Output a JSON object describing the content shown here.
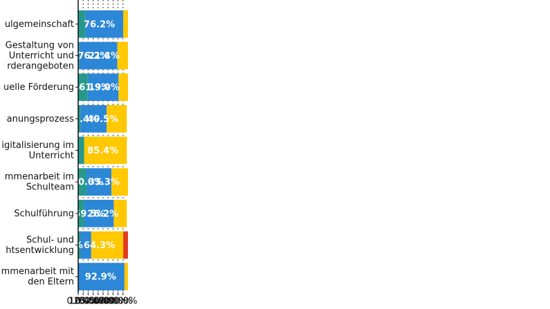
{
  "chart_data": {
    "type": "stacked-bar-horizontal",
    "categories": [
      "ulgemeinschaft",
      "Gestaltung von\nUnterricht und\nrderangeboten",
      "uelle Förderung",
      "anungsprozess",
      "igitalisierung im\nUnterricht",
      "mmenarbeit im\nSchulteam",
      "Schulführung",
      "Schul- und\nhtsentwicklung",
      "mmenarbeit mit\nden Eltern"
    ],
    "series": [
      {
        "color": "#27998b",
        "values": [
          14.3,
          2.4,
          19.1,
          4.7,
          12.2,
          16.7,
          11.9,
          4.8,
          0
        ],
        "value_labels": [
          "14.3%",
          null,
          "19.1%",
          null,
          "12.2%",
          "16.7%",
          "11.9%",
          null,
          null
        ]
      },
      {
        "color": "#2c87d7",
        "values": [
          76.2,
          76.2,
          61.9,
          52.4,
          0,
          50.0,
          59.5,
          21.4,
          92.9
        ],
        "value_labels": [
          "76.2%",
          "76.2%",
          "61.9%",
          "52.4%",
          null,
          "50.0%",
          "59.5%",
          "21.4%",
          "92.9%"
        ]
      },
      {
        "color": "#ffc800",
        "values": [
          9.5,
          21.4,
          19.0,
          40.5,
          85.4,
          33.3,
          26.2,
          64.3,
          7.1
        ],
        "value_labels": [
          null,
          "21.4%",
          "19.0%",
          "40.5%",
          "85.4%",
          "33.3%",
          "26.2%",
          "64.3%",
          null
        ]
      },
      {
        "color": "#e03c22",
        "values": [
          0,
          0,
          0,
          0,
          0,
          0,
          0,
          9.5,
          0
        ],
        "value_labels": [
          null,
          null,
          null,
          null,
          null,
          null,
          null,
          null,
          null
        ]
      }
    ],
    "xlim": [
      0,
      100
    ],
    "xticks": [
      {
        "value": 0,
        "label": "0.0%"
      },
      {
        "value": 10,
        "label": "10.0%"
      },
      {
        "value": 20,
        "label": "20.0%"
      },
      {
        "value": 30,
        "label": "30.0%"
      },
      {
        "value": 40,
        "label": "40.0%"
      },
      {
        "value": 50,
        "label": "50.0%"
      },
      {
        "value": 60,
        "label": "60.0%"
      },
      {
        "value": 70,
        "label": "70.0%"
      },
      {
        "value": 80,
        "label": "80.0%"
      },
      {
        "value": 90,
        "label": "90.0%"
      }
    ],
    "grid": true
  }
}
